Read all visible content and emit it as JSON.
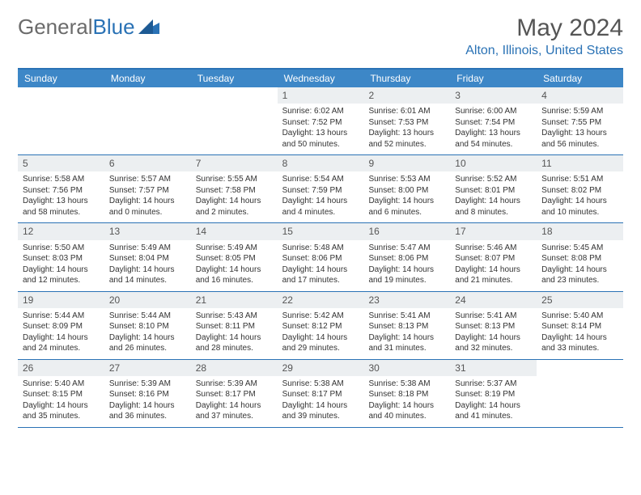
{
  "brand": {
    "part1": "General",
    "part2": "Blue"
  },
  "title": "May 2024",
  "location": "Alton, Illinois, United States",
  "day_headers": [
    "Sunday",
    "Monday",
    "Tuesday",
    "Wednesday",
    "Thursday",
    "Friday",
    "Saturday"
  ],
  "colors": {
    "accent": "#2a72b5",
    "header_bg": "#3d87c7",
    "daynum_bg": "#eceff1",
    "text": "#333333",
    "title_text": "#555555"
  },
  "weeks": [
    [
      null,
      null,
      null,
      {
        "n": "1",
        "sr": "Sunrise: 6:02 AM",
        "ss": "Sunset: 7:52 PM",
        "dl": "Daylight: 13 hours and 50 minutes."
      },
      {
        "n": "2",
        "sr": "Sunrise: 6:01 AM",
        "ss": "Sunset: 7:53 PM",
        "dl": "Daylight: 13 hours and 52 minutes."
      },
      {
        "n": "3",
        "sr": "Sunrise: 6:00 AM",
        "ss": "Sunset: 7:54 PM",
        "dl": "Daylight: 13 hours and 54 minutes."
      },
      {
        "n": "4",
        "sr": "Sunrise: 5:59 AM",
        "ss": "Sunset: 7:55 PM",
        "dl": "Daylight: 13 hours and 56 minutes."
      }
    ],
    [
      {
        "n": "5",
        "sr": "Sunrise: 5:58 AM",
        "ss": "Sunset: 7:56 PM",
        "dl": "Daylight: 13 hours and 58 minutes."
      },
      {
        "n": "6",
        "sr": "Sunrise: 5:57 AM",
        "ss": "Sunset: 7:57 PM",
        "dl": "Daylight: 14 hours and 0 minutes."
      },
      {
        "n": "7",
        "sr": "Sunrise: 5:55 AM",
        "ss": "Sunset: 7:58 PM",
        "dl": "Daylight: 14 hours and 2 minutes."
      },
      {
        "n": "8",
        "sr": "Sunrise: 5:54 AM",
        "ss": "Sunset: 7:59 PM",
        "dl": "Daylight: 14 hours and 4 minutes."
      },
      {
        "n": "9",
        "sr": "Sunrise: 5:53 AM",
        "ss": "Sunset: 8:00 PM",
        "dl": "Daylight: 14 hours and 6 minutes."
      },
      {
        "n": "10",
        "sr": "Sunrise: 5:52 AM",
        "ss": "Sunset: 8:01 PM",
        "dl": "Daylight: 14 hours and 8 minutes."
      },
      {
        "n": "11",
        "sr": "Sunrise: 5:51 AM",
        "ss": "Sunset: 8:02 PM",
        "dl": "Daylight: 14 hours and 10 minutes."
      }
    ],
    [
      {
        "n": "12",
        "sr": "Sunrise: 5:50 AM",
        "ss": "Sunset: 8:03 PM",
        "dl": "Daylight: 14 hours and 12 minutes."
      },
      {
        "n": "13",
        "sr": "Sunrise: 5:49 AM",
        "ss": "Sunset: 8:04 PM",
        "dl": "Daylight: 14 hours and 14 minutes."
      },
      {
        "n": "14",
        "sr": "Sunrise: 5:49 AM",
        "ss": "Sunset: 8:05 PM",
        "dl": "Daylight: 14 hours and 16 minutes."
      },
      {
        "n": "15",
        "sr": "Sunrise: 5:48 AM",
        "ss": "Sunset: 8:06 PM",
        "dl": "Daylight: 14 hours and 17 minutes."
      },
      {
        "n": "16",
        "sr": "Sunrise: 5:47 AM",
        "ss": "Sunset: 8:06 PM",
        "dl": "Daylight: 14 hours and 19 minutes."
      },
      {
        "n": "17",
        "sr": "Sunrise: 5:46 AM",
        "ss": "Sunset: 8:07 PM",
        "dl": "Daylight: 14 hours and 21 minutes."
      },
      {
        "n": "18",
        "sr": "Sunrise: 5:45 AM",
        "ss": "Sunset: 8:08 PM",
        "dl": "Daylight: 14 hours and 23 minutes."
      }
    ],
    [
      {
        "n": "19",
        "sr": "Sunrise: 5:44 AM",
        "ss": "Sunset: 8:09 PM",
        "dl": "Daylight: 14 hours and 24 minutes."
      },
      {
        "n": "20",
        "sr": "Sunrise: 5:44 AM",
        "ss": "Sunset: 8:10 PM",
        "dl": "Daylight: 14 hours and 26 minutes."
      },
      {
        "n": "21",
        "sr": "Sunrise: 5:43 AM",
        "ss": "Sunset: 8:11 PM",
        "dl": "Daylight: 14 hours and 28 minutes."
      },
      {
        "n": "22",
        "sr": "Sunrise: 5:42 AM",
        "ss": "Sunset: 8:12 PM",
        "dl": "Daylight: 14 hours and 29 minutes."
      },
      {
        "n": "23",
        "sr": "Sunrise: 5:41 AM",
        "ss": "Sunset: 8:13 PM",
        "dl": "Daylight: 14 hours and 31 minutes."
      },
      {
        "n": "24",
        "sr": "Sunrise: 5:41 AM",
        "ss": "Sunset: 8:13 PM",
        "dl": "Daylight: 14 hours and 32 minutes."
      },
      {
        "n": "25",
        "sr": "Sunrise: 5:40 AM",
        "ss": "Sunset: 8:14 PM",
        "dl": "Daylight: 14 hours and 33 minutes."
      }
    ],
    [
      {
        "n": "26",
        "sr": "Sunrise: 5:40 AM",
        "ss": "Sunset: 8:15 PM",
        "dl": "Daylight: 14 hours and 35 minutes."
      },
      {
        "n": "27",
        "sr": "Sunrise: 5:39 AM",
        "ss": "Sunset: 8:16 PM",
        "dl": "Daylight: 14 hours and 36 minutes."
      },
      {
        "n": "28",
        "sr": "Sunrise: 5:39 AM",
        "ss": "Sunset: 8:17 PM",
        "dl": "Daylight: 14 hours and 37 minutes."
      },
      {
        "n": "29",
        "sr": "Sunrise: 5:38 AM",
        "ss": "Sunset: 8:17 PM",
        "dl": "Daylight: 14 hours and 39 minutes."
      },
      {
        "n": "30",
        "sr": "Sunrise: 5:38 AM",
        "ss": "Sunset: 8:18 PM",
        "dl": "Daylight: 14 hours and 40 minutes."
      },
      {
        "n": "31",
        "sr": "Sunrise: 5:37 AM",
        "ss": "Sunset: 8:19 PM",
        "dl": "Daylight: 14 hours and 41 minutes."
      },
      null
    ]
  ]
}
